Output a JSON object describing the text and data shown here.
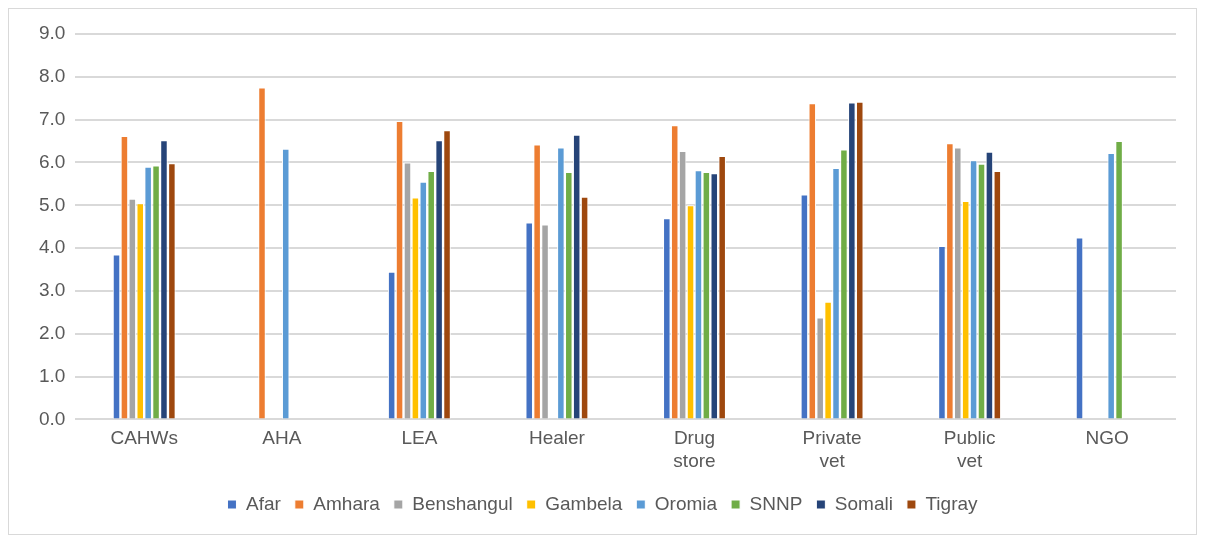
{
  "chart_data": {
    "type": "bar",
    "categories": [
      "CAHWs",
      "AHA",
      "LEA",
      "Healer",
      "Drug store",
      "Private vet",
      "Public vet",
      "NGO"
    ],
    "series": [
      {
        "name": "Afar",
        "color": "#4472c4",
        "values": [
          3.85,
          null,
          3.45,
          4.6,
          4.7,
          5.25,
          4.05,
          4.25
        ]
      },
      {
        "name": "Amhara",
        "color": "#ed7d31",
        "values": [
          6.62,
          7.75,
          6.97,
          6.42,
          6.87,
          7.38,
          6.45,
          null
        ]
      },
      {
        "name": "Benshangul",
        "color": "#a5a5a5",
        "values": [
          5.15,
          null,
          6.0,
          4.55,
          6.27,
          2.38,
          6.35,
          null
        ]
      },
      {
        "name": "Gambela",
        "color": "#ffc000",
        "values": [
          5.05,
          null,
          5.18,
          null,
          5.0,
          2.75,
          5.1,
          null
        ]
      },
      {
        "name": "Oromia",
        "color": "#5b9bd5",
        "values": [
          5.9,
          6.32,
          5.55,
          6.35,
          5.82,
          5.87,
          6.05,
          6.22
        ]
      },
      {
        "name": "SNNP",
        "color": "#70ad47",
        "values": [
          5.93,
          null,
          5.8,
          5.78,
          5.78,
          6.3,
          5.97,
          6.5
        ]
      },
      {
        "name": "Somali",
        "color": "#264478",
        "values": [
          6.52,
          null,
          6.52,
          6.65,
          5.75,
          7.4,
          6.25,
          null
        ]
      },
      {
        "name": "Tigray",
        "color": "#9e480e",
        "values": [
          5.98,
          null,
          6.75,
          5.2,
          6.15,
          7.42,
          5.8,
          null
        ]
      }
    ],
    "ylim": [
      0,
      9
    ],
    "yticks": [
      {
        "value": 0,
        "label": "0.0"
      },
      {
        "value": 1,
        "label": "1.0"
      },
      {
        "value": 2,
        "label": "2.0"
      },
      {
        "value": 3,
        "label": "3.0"
      },
      {
        "value": 4,
        "label": "4.0"
      },
      {
        "value": 5,
        "label": "5.0"
      },
      {
        "value": 6,
        "label": "6.0"
      },
      {
        "value": 7,
        "label": "7.0"
      },
      {
        "value": 8,
        "label": "8.0"
      },
      {
        "value": 9,
        "label": "9.0"
      }
    ],
    "grid": "y",
    "legend": "bottom"
  }
}
